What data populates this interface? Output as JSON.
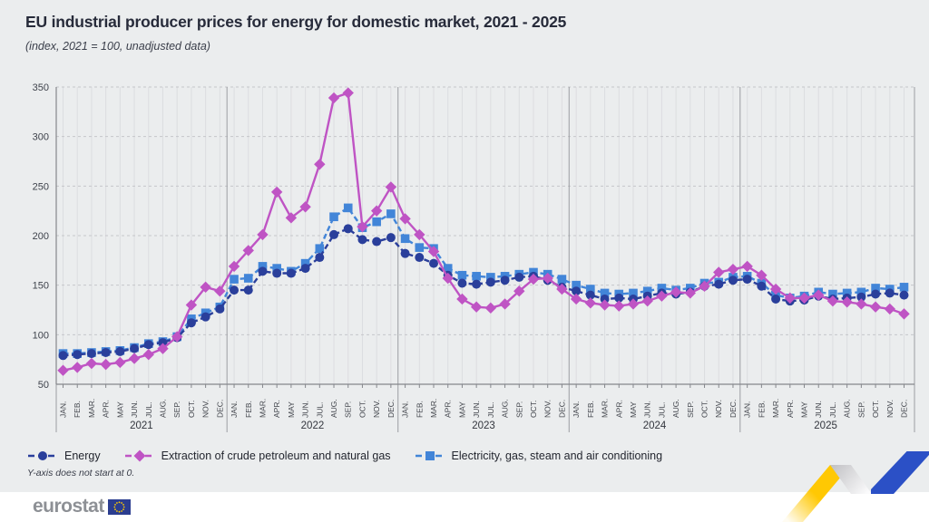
{
  "header": {
    "title": "EU industrial producer prices for energy for domestic market, 2021 - 2025",
    "subtitle": "(index, 2021 = 100, unadjusted data)"
  },
  "chart_data": {
    "type": "line",
    "title": "EU industrial producer prices for energy for domestic market, 2021 - 2025",
    "subtitle": "(index, 2021 = 100, unadjusted data)",
    "xlabel": "",
    "ylabel": "",
    "ylim": [
      50,
      350
    ],
    "yticks": [
      50,
      100,
      150,
      200,
      250,
      300,
      350
    ],
    "grid": "vertical solid per month; horizontal dashed per 50; legend bottom",
    "month_labels": [
      "JAN.",
      "FEB.",
      "MAR.",
      "APR.",
      "MAY",
      "JUN.",
      "JUL.",
      "AUG.",
      "SEP.",
      "OCT.",
      "NOV.",
      "DEC."
    ],
    "years": [
      "2021",
      "2022",
      "2023",
      "2024",
      "2025"
    ],
    "series": [
      {
        "name": "Energy",
        "color": "#2a3f9b",
        "marker": "circle",
        "dashed": true,
        "values": [
          79,
          80,
          81,
          82,
          83,
          86,
          90,
          92,
          97,
          112,
          118,
          126,
          145,
          145,
          164,
          162,
          162,
          167,
          178,
          201,
          207,
          196,
          194,
          198,
          182,
          178,
          172,
          160,
          152,
          151,
          153,
          155,
          158,
          159,
          155,
          148,
          144,
          140,
          136,
          137,
          136,
          139,
          142,
          141,
          143,
          149,
          151,
          155,
          156,
          149,
          136,
          134,
          135,
          139,
          136,
          137,
          138,
          141,
          142,
          140
        ]
      },
      {
        "name": "Extraction of crude petroleum and natural gas",
        "color": "#bf54c4",
        "marker": "diamond",
        "dashed": false,
        "values": [
          64,
          67,
          71,
          70,
          72,
          76,
          80,
          86,
          98,
          130,
          148,
          144,
          169,
          185,
          201,
          244,
          218,
          229,
          272,
          339,
          344,
          209,
          225,
          249,
          217,
          201,
          184,
          157,
          136,
          128,
          127,
          131,
          144,
          156,
          157,
          146,
          136,
          132,
          130,
          129,
          131,
          134,
          139,
          143,
          142,
          149,
          163,
          166,
          169,
          160,
          146,
          137,
          137,
          140,
          134,
          133,
          131,
          128,
          126,
          121
        ]
      },
      {
        "name": "Electricity, gas, steam and air conditioning",
        "color": "#4285d8",
        "marker": "square",
        "dashed": true,
        "values": [
          81,
          81,
          82,
          83,
          84,
          87,
          91,
          93,
          98,
          116,
          122,
          128,
          156,
          157,
          169,
          167,
          164,
          172,
          187,
          219,
          228,
          208,
          214,
          222,
          197,
          188,
          187,
          167,
          160,
          159,
          158,
          159,
          161,
          163,
          161,
          156,
          150,
          146,
          142,
          141,
          142,
          144,
          147,
          145,
          147,
          152,
          153,
          158,
          159,
          152,
          140,
          137,
          139,
          143,
          141,
          142,
          143,
          147,
          146,
          148
        ]
      }
    ],
    "note": "Y-axis does not start at 0."
  },
  "footnote": "Y-axis does not start at 0.",
  "footer": {
    "logo_text": "eurostat"
  },
  "colors": {
    "page_bg": "#ebedee",
    "footer_bg": "#ffffff",
    "grid_vertical": "#dcdde0",
    "grid_horizontal": "#c5c6ca",
    "axis": "#85878c",
    "year_separator": "#9b9da2",
    "tick_text": "#3e424b",
    "title_text": "#272b3a",
    "eu_flag_blue": "#2b3d8f",
    "eu_star_yellow": "#ffcc00",
    "ribbon_yellow": "#ffc803",
    "ribbon_blue": "#2b50c6",
    "ribbon_fold": "#cfcfd2"
  }
}
